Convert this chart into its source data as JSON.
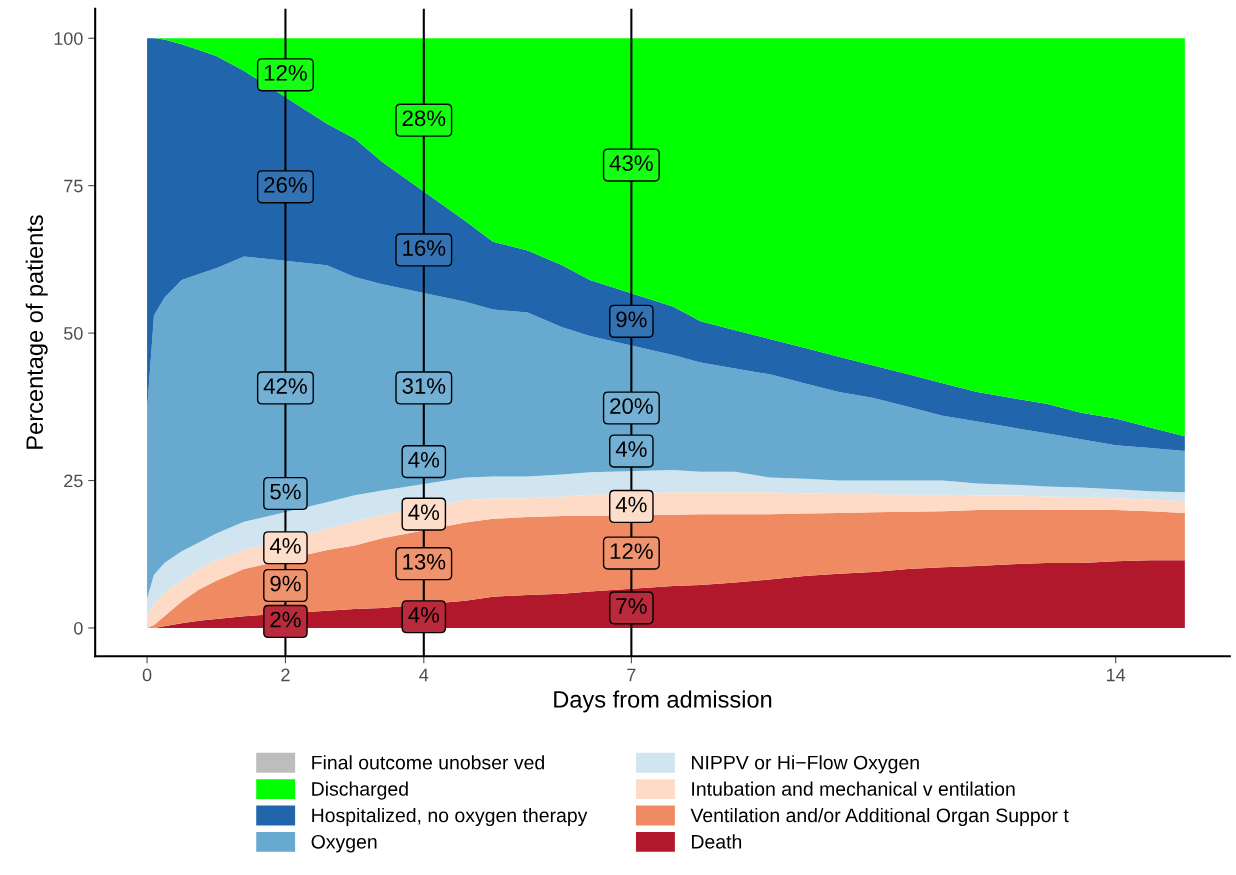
{
  "chart_data": {
    "type": "area",
    "stacked": true,
    "xlabel": "Days from admission",
    "ylabel": "Percentage of patients",
    "x": [
      0,
      0.1,
      0.25,
      0.5,
      0.75,
      1,
      1.4,
      2.6,
      3,
      3.4,
      4.6,
      5,
      5.5,
      6,
      6.4,
      7.6,
      8,
      8.5,
      9,
      9.5,
      10,
      10.5,
      11,
      11.5,
      12,
      12.5,
      13,
      13.5,
      14,
      14.5,
      15
    ],
    "series": [
      {
        "name": "Death",
        "color": "#b2182b",
        "values": [
          0,
          0,
          0.3,
          0.8,
          1.2,
          1.5,
          2,
          2.9,
          3.2,
          3.4,
          4.6,
          5.3,
          5.6,
          5.8,
          6.2,
          7.1,
          7.3,
          7.7,
          8.2,
          8.8,
          9.2,
          9.5,
          10,
          10.3,
          10.5,
          10.8,
          11,
          11,
          11.3,
          11.5,
          11.5
        ]
      },
      {
        "name": "Ventilation and/or Additional Organ Suppor t",
        "color": "#ef8a62",
        "values": [
          0,
          0.5,
          1.7,
          3.7,
          5.3,
          6.5,
          8,
          10.3,
          10.8,
          11.8,
          13.3,
          13.2,
          13.2,
          13.2,
          12.8,
          12.1,
          12,
          11.6,
          11.1,
          10.6,
          10.3,
          10.1,
          9.7,
          9.5,
          9.5,
          9.2,
          9,
          9,
          8.7,
          8.3,
          8
        ]
      },
      {
        "name": "Intubation and mechanical v entilation",
        "color": "#fddbc7",
        "values": [
          2,
          3.5,
          4,
          3.5,
          3.5,
          3.5,
          3.2,
          3.6,
          4,
          4,
          3.8,
          3.5,
          3.2,
          3.3,
          3.6,
          3.8,
          3.7,
          3.7,
          3.7,
          3.4,
          3.2,
          3.1,
          2.9,
          2.8,
          2.5,
          2.5,
          2.3,
          2.2,
          2,
          2,
          2
        ]
      },
      {
        "name": "NIPPV or Hi−Flow Oxygen",
        "color": "#d1e5f0",
        "values": [
          3,
          5,
          5,
          5,
          4.5,
          4.5,
          4.8,
          4.5,
          4.5,
          4.1,
          3.8,
          3.7,
          3.7,
          3.7,
          3.8,
          3.8,
          3.5,
          3.5,
          2.5,
          2.5,
          2.3,
          2.3,
          2.4,
          2.4,
          2,
          1.8,
          1.7,
          1.6,
          1.5,
          1.4,
          1.5
        ]
      },
      {
        "name": "Oxygen",
        "color": "#67a9cf",
        "values": [
          32,
          44,
          45,
          46,
          45.5,
          45,
          45,
          40.2,
          37,
          35,
          29.8,
          28.3,
          27.8,
          25,
          23.1,
          19.5,
          18.5,
          17.5,
          17.5,
          16.2,
          15,
          14,
          12.5,
          11,
          10.5,
          9.7,
          9,
          8.2,
          7.5,
          7.3,
          7
        ]
      },
      {
        "name": "Hospitalized, no oxygen therapy",
        "color": "#2166ac",
        "values": [
          63,
          47,
          43.8,
          40,
          38,
          36,
          31.5,
          24,
          23.5,
          20.7,
          13.7,
          11.5,
          10.5,
          10.5,
          9.5,
          8.2,
          7,
          6.5,
          6,
          6,
          6,
          5.5,
          5.5,
          5.5,
          5,
          5,
          5,
          4.5,
          4.5,
          3.5,
          2.5
        ]
      },
      {
        "name": "Discharged",
        "color": "#00ff00",
        "values": [
          0,
          0,
          0.2,
          1,
          2,
          3,
          5.5,
          14.5,
          17,
          21,
          31,
          34.5,
          36,
          38.5,
          41,
          45.5,
          48,
          49.5,
          51,
          52.5,
          54,
          55.5,
          57,
          58.5,
          60,
          61,
          62,
          63.5,
          64.5,
          66,
          67.5
        ]
      },
      {
        "name": "Final outcome unobser ved",
        "color": "#bdbdbd",
        "values": [
          null,
          null,
          null,
          null,
          null,
          null,
          null,
          null,
          null,
          null,
          null,
          null,
          null,
          null,
          null,
          null,
          null,
          null,
          null,
          null,
          null,
          null,
          null,
          null,
          null,
          null,
          null,
          null,
          null,
          null,
          null
        ]
      }
    ],
    "xlim": [
      -0.75,
      15.65
    ],
    "xticks": [
      0,
      2,
      4,
      7,
      14
    ],
    "ylim": [
      -4.8,
      105
    ],
    "yticks": [
      0,
      25,
      50,
      75,
      100
    ],
    "grid": false,
    "legend": "bottom",
    "ref_lines": [
      {
        "axis": "x",
        "value": 2,
        "color": "#000000"
      },
      {
        "axis": "x",
        "value": 4,
        "color": "#000000"
      },
      {
        "axis": "x",
        "value": 7,
        "color": "#000000"
      }
    ],
    "annotations": [
      {
        "text": "12%",
        "x": 2,
        "y": 93.8
      },
      {
        "text": "26%",
        "x": 2,
        "y": 74.8
      },
      {
        "text": "42%",
        "x": 2,
        "y": 40.7
      },
      {
        "text": "5%",
        "x": 2,
        "y": 22.8
      },
      {
        "text": "4%",
        "x": 2,
        "y": 13.6
      },
      {
        "text": "9%",
        "x": 2,
        "y": 7.2
      },
      {
        "text": "2%",
        "x": 2,
        "y": 1.1
      },
      {
        "text": "28%",
        "x": 4,
        "y": 86.1
      },
      {
        "text": "16%",
        "x": 4,
        "y": 64.1
      },
      {
        "text": "31%",
        "x": 4,
        "y": 40.7
      },
      {
        "text": "4%",
        "x": 4,
        "y": 28.2
      },
      {
        "text": "4%",
        "x": 4,
        "y": 19.3
      },
      {
        "text": "13%",
        "x": 4,
        "y": 10.9
      },
      {
        "text": "4%",
        "x": 4,
        "y": 1.9
      },
      {
        "text": "43%",
        "x": 7,
        "y": 78.5
      },
      {
        "text": "9%",
        "x": 7,
        "y": 52
      },
      {
        "text": "20%",
        "x": 7,
        "y": 37.3
      },
      {
        "text": "4%",
        "x": 7,
        "y": 30
      },
      {
        "text": "4%",
        "x": 7,
        "y": 20.6
      },
      {
        "text": "12%",
        "x": 7,
        "y": 12.7
      },
      {
        "text": "7%",
        "x": 7,
        "y": 3.4
      }
    ]
  }
}
